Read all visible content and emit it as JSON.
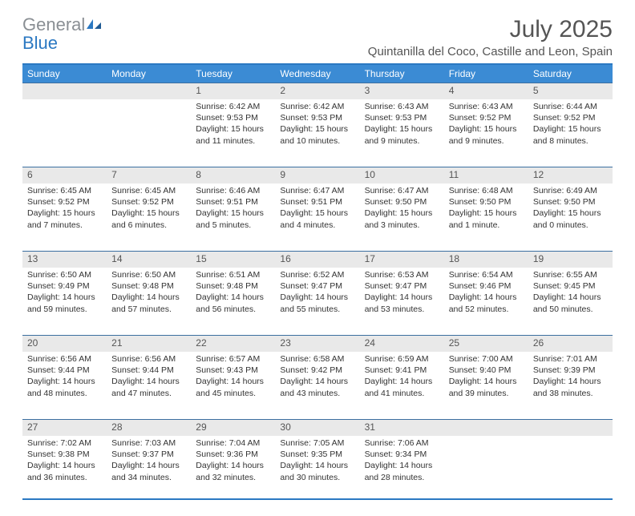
{
  "logo": {
    "part1": "General",
    "part2": "Blue"
  },
  "title": "July 2025",
  "location": "Quintanilla del Coco, Castille and Leon, Spain",
  "day_names": [
    "Sunday",
    "Monday",
    "Tuesday",
    "Wednesday",
    "Thursday",
    "Friday",
    "Saturday"
  ],
  "colors": {
    "header_bg": "#3b8bd4",
    "border_blue": "#2b78c2",
    "date_bg": "#e9e9e9",
    "text": "#333333",
    "muted": "#555555"
  },
  "weeks": [
    [
      {
        "day": "",
        "sunrise": "",
        "sunset": "",
        "daylight": ""
      },
      {
        "day": "",
        "sunrise": "",
        "sunset": "",
        "daylight": ""
      },
      {
        "day": "1",
        "sunrise": "Sunrise: 6:42 AM",
        "sunset": "Sunset: 9:53 PM",
        "daylight": "Daylight: 15 hours and 11 minutes."
      },
      {
        "day": "2",
        "sunrise": "Sunrise: 6:42 AM",
        "sunset": "Sunset: 9:53 PM",
        "daylight": "Daylight: 15 hours and 10 minutes."
      },
      {
        "day": "3",
        "sunrise": "Sunrise: 6:43 AM",
        "sunset": "Sunset: 9:53 PM",
        "daylight": "Daylight: 15 hours and 9 minutes."
      },
      {
        "day": "4",
        "sunrise": "Sunrise: 6:43 AM",
        "sunset": "Sunset: 9:52 PM",
        "daylight": "Daylight: 15 hours and 9 minutes."
      },
      {
        "day": "5",
        "sunrise": "Sunrise: 6:44 AM",
        "sunset": "Sunset: 9:52 PM",
        "daylight": "Daylight: 15 hours and 8 minutes."
      }
    ],
    [
      {
        "day": "6",
        "sunrise": "Sunrise: 6:45 AM",
        "sunset": "Sunset: 9:52 PM",
        "daylight": "Daylight: 15 hours and 7 minutes."
      },
      {
        "day": "7",
        "sunrise": "Sunrise: 6:45 AM",
        "sunset": "Sunset: 9:52 PM",
        "daylight": "Daylight: 15 hours and 6 minutes."
      },
      {
        "day": "8",
        "sunrise": "Sunrise: 6:46 AM",
        "sunset": "Sunset: 9:51 PM",
        "daylight": "Daylight: 15 hours and 5 minutes."
      },
      {
        "day": "9",
        "sunrise": "Sunrise: 6:47 AM",
        "sunset": "Sunset: 9:51 PM",
        "daylight": "Daylight: 15 hours and 4 minutes."
      },
      {
        "day": "10",
        "sunrise": "Sunrise: 6:47 AM",
        "sunset": "Sunset: 9:50 PM",
        "daylight": "Daylight: 15 hours and 3 minutes."
      },
      {
        "day": "11",
        "sunrise": "Sunrise: 6:48 AM",
        "sunset": "Sunset: 9:50 PM",
        "daylight": "Daylight: 15 hours and 1 minute."
      },
      {
        "day": "12",
        "sunrise": "Sunrise: 6:49 AM",
        "sunset": "Sunset: 9:50 PM",
        "daylight": "Daylight: 15 hours and 0 minutes."
      }
    ],
    [
      {
        "day": "13",
        "sunrise": "Sunrise: 6:50 AM",
        "sunset": "Sunset: 9:49 PM",
        "daylight": "Daylight: 14 hours and 59 minutes."
      },
      {
        "day": "14",
        "sunrise": "Sunrise: 6:50 AM",
        "sunset": "Sunset: 9:48 PM",
        "daylight": "Daylight: 14 hours and 57 minutes."
      },
      {
        "day": "15",
        "sunrise": "Sunrise: 6:51 AM",
        "sunset": "Sunset: 9:48 PM",
        "daylight": "Daylight: 14 hours and 56 minutes."
      },
      {
        "day": "16",
        "sunrise": "Sunrise: 6:52 AM",
        "sunset": "Sunset: 9:47 PM",
        "daylight": "Daylight: 14 hours and 55 minutes."
      },
      {
        "day": "17",
        "sunrise": "Sunrise: 6:53 AM",
        "sunset": "Sunset: 9:47 PM",
        "daylight": "Daylight: 14 hours and 53 minutes."
      },
      {
        "day": "18",
        "sunrise": "Sunrise: 6:54 AM",
        "sunset": "Sunset: 9:46 PM",
        "daylight": "Daylight: 14 hours and 52 minutes."
      },
      {
        "day": "19",
        "sunrise": "Sunrise: 6:55 AM",
        "sunset": "Sunset: 9:45 PM",
        "daylight": "Daylight: 14 hours and 50 minutes."
      }
    ],
    [
      {
        "day": "20",
        "sunrise": "Sunrise: 6:56 AM",
        "sunset": "Sunset: 9:44 PM",
        "daylight": "Daylight: 14 hours and 48 minutes."
      },
      {
        "day": "21",
        "sunrise": "Sunrise: 6:56 AM",
        "sunset": "Sunset: 9:44 PM",
        "daylight": "Daylight: 14 hours and 47 minutes."
      },
      {
        "day": "22",
        "sunrise": "Sunrise: 6:57 AM",
        "sunset": "Sunset: 9:43 PM",
        "daylight": "Daylight: 14 hours and 45 minutes."
      },
      {
        "day": "23",
        "sunrise": "Sunrise: 6:58 AM",
        "sunset": "Sunset: 9:42 PM",
        "daylight": "Daylight: 14 hours and 43 minutes."
      },
      {
        "day": "24",
        "sunrise": "Sunrise: 6:59 AM",
        "sunset": "Sunset: 9:41 PM",
        "daylight": "Daylight: 14 hours and 41 minutes."
      },
      {
        "day": "25",
        "sunrise": "Sunrise: 7:00 AM",
        "sunset": "Sunset: 9:40 PM",
        "daylight": "Daylight: 14 hours and 39 minutes."
      },
      {
        "day": "26",
        "sunrise": "Sunrise: 7:01 AM",
        "sunset": "Sunset: 9:39 PM",
        "daylight": "Daylight: 14 hours and 38 minutes."
      }
    ],
    [
      {
        "day": "27",
        "sunrise": "Sunrise: 7:02 AM",
        "sunset": "Sunset: 9:38 PM",
        "daylight": "Daylight: 14 hours and 36 minutes."
      },
      {
        "day": "28",
        "sunrise": "Sunrise: 7:03 AM",
        "sunset": "Sunset: 9:37 PM",
        "daylight": "Daylight: 14 hours and 34 minutes."
      },
      {
        "day": "29",
        "sunrise": "Sunrise: 7:04 AM",
        "sunset": "Sunset: 9:36 PM",
        "daylight": "Daylight: 14 hours and 32 minutes."
      },
      {
        "day": "30",
        "sunrise": "Sunrise: 7:05 AM",
        "sunset": "Sunset: 9:35 PM",
        "daylight": "Daylight: 14 hours and 30 minutes."
      },
      {
        "day": "31",
        "sunrise": "Sunrise: 7:06 AM",
        "sunset": "Sunset: 9:34 PM",
        "daylight": "Daylight: 14 hours and 28 minutes."
      },
      {
        "day": "",
        "sunrise": "",
        "sunset": "",
        "daylight": ""
      },
      {
        "day": "",
        "sunrise": "",
        "sunset": "",
        "daylight": ""
      }
    ]
  ]
}
